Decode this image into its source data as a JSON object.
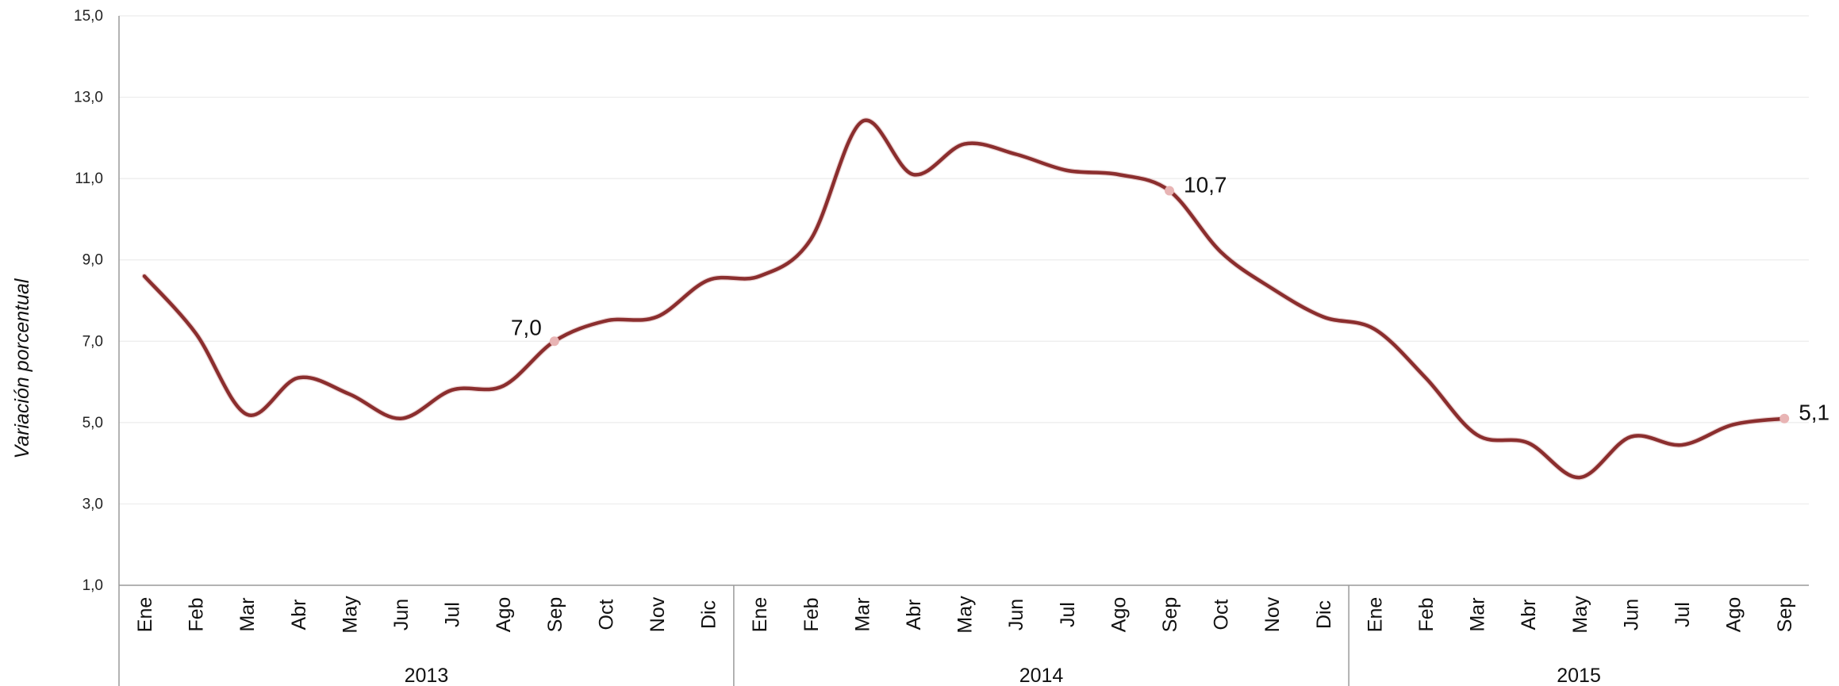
{
  "chart_data": {
    "type": "line",
    "ylabel": "Variación porcentual",
    "xlabel": "",
    "ylim": [
      1.0,
      15.0
    ],
    "y_ticks": [
      "1,0",
      "3,0",
      "5,0",
      "7,0",
      "9,0",
      "11,0",
      "13,0",
      "15,0"
    ],
    "y_tick_values": [
      1,
      3,
      5,
      7,
      9,
      11,
      13,
      15
    ],
    "grid": true,
    "legend": "none",
    "line_color": "#8b2e2e",
    "marker_color": "#e8b4b4",
    "groups": [
      {
        "year": "2013",
        "months": [
          "Ene",
          "Feb",
          "Mar",
          "Abr",
          "May",
          "Jun",
          "Jul",
          "Ago",
          "Sep",
          "Oct",
          "Nov",
          "Dic"
        ]
      },
      {
        "year": "2014",
        "months": [
          "Ene",
          "Feb",
          "Mar",
          "Abr",
          "May",
          "Jun",
          "Jul",
          "Ago",
          "Sep",
          "Oct",
          "Nov",
          "Dic"
        ]
      },
      {
        "year": "2015",
        "months": [
          "Ene",
          "Feb",
          "Mar",
          "Abr",
          "May",
          "Jun",
          "Jul",
          "Ago",
          "Sep"
        ]
      }
    ],
    "series": [
      {
        "values": [
          8.6,
          7.2,
          5.2,
          6.1,
          5.7,
          5.1,
          5.8,
          5.9,
          7.0,
          7.5,
          7.6,
          8.5,
          8.6,
          9.5,
          12.4,
          11.1,
          11.85,
          11.6,
          11.2,
          11.1,
          10.7,
          9.2,
          8.3,
          7.6,
          7.3,
          6.1,
          4.7,
          4.5,
          3.65,
          4.65,
          4.45,
          4.95,
          5.1
        ]
      }
    ],
    "data_labels": [
      {
        "index": 8,
        "text": "7,0",
        "side": "left"
      },
      {
        "index": 20,
        "text": "10,7",
        "side": "right"
      },
      {
        "index": 32,
        "text": "5,1",
        "side": "right"
      }
    ]
  }
}
